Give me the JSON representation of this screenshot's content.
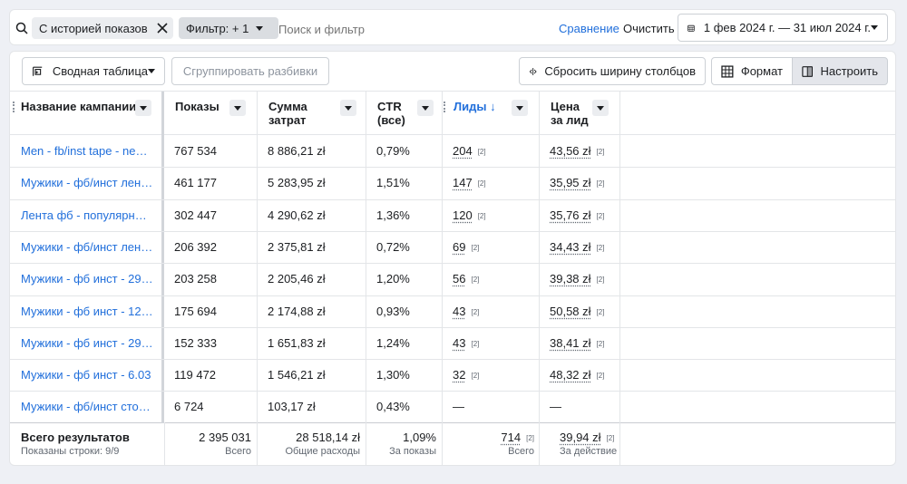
{
  "topbar": {
    "chip_history": "С историей показов",
    "chip_filter": "Фильтр: + 1",
    "search_placeholder": "Поиск и фильтр",
    "compare": "Сравнение",
    "clear": "Очистить",
    "date_range": "1 фев 2024 г. — 31 июл 2024 г."
  },
  "toolbar": {
    "pivot": "Сводная таблица",
    "group": "Сгруппировать разбивки",
    "reset_width": "Сбросить ширину столбцов",
    "format": "Формат",
    "customize": "Настроить"
  },
  "table": {
    "headers": {
      "campaign": "Название кампании",
      "impressions": "Показы",
      "spend_1": "Сумма",
      "spend_2": "затрат",
      "ctr_1": "CTR",
      "ctr_2": "(все)",
      "leads": "Лиды ↓",
      "cpl_1": "Цена",
      "cpl_2": "за лид"
    },
    "rows": [
      {
        "name": "Men - fb/inst tape - new ...",
        "impressions": "767 534",
        "spend": "8 886,21 zł",
        "ctr": "0,79%",
        "leads": "204",
        "leads_sup": "[2]",
        "cpl": "43,56 zł",
        "cpl_sup": "[2]"
      },
      {
        "name": "Мужики - фб/инст лент...",
        "impressions": "461 177",
        "spend": "5 283,95 zł",
        "ctr": "1,51%",
        "leads": "147",
        "leads_sup": "[2]",
        "cpl": "35,95 zł",
        "cpl_sup": "[2]"
      },
      {
        "name": "Лента фб - популярный...",
        "impressions": "302 447",
        "spend": "4 290,62 zł",
        "ctr": "1,36%",
        "leads": "120",
        "leads_sup": "[2]",
        "cpl": "35,76 zł",
        "cpl_sup": "[2]"
      },
      {
        "name": "Мужики - фб/инст лент...",
        "impressions": "206 392",
        "spend": "2 375,81 zł",
        "ctr": "0,72%",
        "leads": "69",
        "leads_sup": "[2]",
        "cpl": "34,43 zł",
        "cpl_sup": "[2]"
      },
      {
        "name": "Мужики - фб инст - 29....",
        "impressions": "203 258",
        "spend": "2 205,46 zł",
        "ctr": "1,20%",
        "leads": "56",
        "leads_sup": "[2]",
        "cpl": "39,38 zł",
        "cpl_sup": "[2]"
      },
      {
        "name": "Мужики - фб инст - 12....",
        "impressions": "175 694",
        "spend": "2 174,88 zł",
        "ctr": "0,93%",
        "leads": "43",
        "leads_sup": "[2]",
        "cpl": "50,58 zł",
        "cpl_sup": "[2]"
      },
      {
        "name": "Мужики - фб инст - 29....",
        "impressions": "152 333",
        "spend": "1 651,83 zł",
        "ctr": "1,24%",
        "leads": "43",
        "leads_sup": "[2]",
        "cpl": "38,41 zł",
        "cpl_sup": "[2]"
      },
      {
        "name": "Мужики - фб инст - 6.03",
        "impressions": "119 472",
        "spend": "1 546,21 zł",
        "ctr": "1,30%",
        "leads": "32",
        "leads_sup": "[2]",
        "cpl": "48,32 zł",
        "cpl_sup": "[2]"
      },
      {
        "name": "Мужики - фб/инст стор...",
        "impressions": "6 724",
        "spend": "103,17 zł",
        "ctr": "0,43%",
        "leads": "—",
        "leads_sup": "",
        "cpl": "—",
        "cpl_sup": ""
      }
    ],
    "totals": {
      "label": "Всего результатов",
      "rows_shown": "Показаны строки: 9/9",
      "impressions": "2 395 031",
      "impressions_sub": "Всего",
      "spend": "28 518,14 zł",
      "spend_sub": "Общие расходы",
      "ctr": "1,09%",
      "ctr_sub": "За показы",
      "leads": "714",
      "leads_sup": "[2]",
      "leads_sub": "Всего",
      "cpl": "39,94 zł",
      "cpl_sup": "[2]",
      "cpl_sub": "За действие"
    }
  },
  "colors": {
    "link": "#216fdb",
    "border": "#e3e5e8",
    "background": "#eef0f5"
  }
}
